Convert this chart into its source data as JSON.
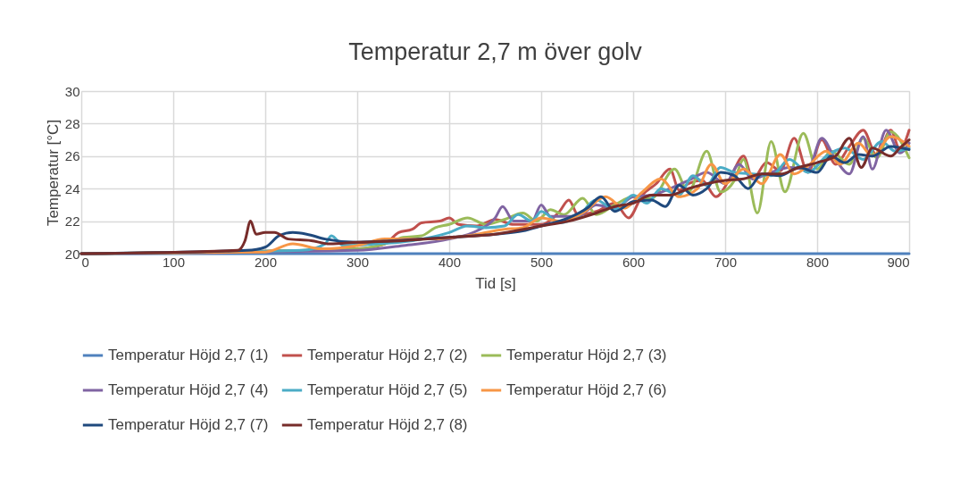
{
  "chart_data": {
    "type": "line",
    "title": "Temperatur 2,7 m över golv",
    "xlabel": "Tid [s]",
    "ylabel": "Temperatur [°C]",
    "xlim": [
      0,
      900
    ],
    "xticks": [
      0,
      100,
      200,
      300,
      400,
      500,
      600,
      700,
      800,
      900
    ],
    "ylim": [
      20,
      30
    ],
    "yticks": [
      20,
      22,
      24,
      26,
      28,
      30
    ],
    "grid": true,
    "legend": "bottom",
    "marker": "none",
    "line_style": "solid",
    "series": [
      {
        "name": "Temperatur Höjd 2,7 (1)",
        "color": "#4f81bd",
        "x": [
          0,
          900
        ],
        "values": [
          20,
          20
        ]
      },
      {
        "name": "Temperatur Höjd 2,7 (2)",
        "color": "#c0504d",
        "x": [
          0,
          300,
          330,
          345,
          360,
          370,
          390,
          400,
          410,
          430,
          450,
          470,
          500,
          520,
          530,
          540,
          560,
          580,
          595,
          610,
          625,
          640,
          650,
          660,
          675,
          690,
          705,
          720,
          730,
          745,
          760,
          775,
          790,
          805,
          820,
          835,
          850,
          865,
          880,
          890,
          900
        ],
        "values": [
          20,
          20.3,
          20.6,
          21.3,
          21.5,
          21.9,
          22.0,
          22.2,
          21.8,
          21.7,
          22.1,
          21.8,
          21.8,
          22.6,
          23.3,
          22.4,
          22.6,
          23.1,
          22.2,
          23.6,
          24.3,
          25.2,
          23.9,
          24.3,
          24.5,
          23.5,
          24.6,
          26.0,
          24.6,
          25.6,
          25.1,
          27.1,
          25.0,
          27.0,
          25.5,
          26.6,
          27.6,
          26.0,
          27.6,
          26.4,
          27.6
        ]
      },
      {
        "name": "Temperatur Höjd 2,7 (3)",
        "color": "#9bbb59",
        "x": [
          0,
          300,
          330,
          350,
          370,
          385,
          400,
          420,
          440,
          460,
          480,
          495,
          510,
          525,
          545,
          560,
          580,
          600,
          620,
          645,
          660,
          680,
          695,
          710,
          720,
          735,
          750,
          765,
          785,
          800,
          815,
          835,
          850,
          865,
          880,
          900
        ],
        "values": [
          20,
          20.3,
          20.6,
          21.0,
          21.1,
          21.6,
          21.8,
          22.2,
          21.8,
          22.1,
          22.5,
          22.0,
          22.7,
          22.4,
          23.4,
          22.4,
          23.0,
          23.5,
          23.4,
          25.2,
          23.8,
          26.3,
          23.8,
          24.5,
          25.8,
          22.5,
          26.9,
          23.8,
          27.4,
          25.2,
          26.3,
          25.5,
          27.1,
          25.9,
          27.5,
          25.9
        ]
      },
      {
        "name": "Temperatur Höjd 2,7 (4)",
        "color": "#8064a2",
        "x": [
          0,
          300,
          350,
          400,
          430,
          450,
          458,
          470,
          490,
          500,
          510,
          540,
          560,
          580,
          600,
          620,
          640,
          660,
          680,
          700,
          715,
          730,
          750,
          770,
          790,
          805,
          820,
          835,
          850,
          860,
          875,
          890,
          900
        ],
        "values": [
          20,
          20.2,
          20.5,
          20.9,
          21.4,
          22.2,
          22.9,
          22.0,
          22.0,
          23.0,
          22.3,
          22.3,
          23.0,
          22.8,
          23.5,
          23.6,
          24.0,
          24.5,
          25.0,
          24.3,
          25.5,
          24.6,
          25.0,
          25.3,
          25.2,
          27.1,
          25.8,
          24.9,
          27.2,
          25.2,
          27.6,
          26.2,
          26.8
        ]
      },
      {
        "name": "Temperatur Höjd 2,7 (5)",
        "color": "#4bacc6",
        "x": [
          0,
          240,
          265,
          272,
          285,
          320,
          360,
          400,
          420,
          440,
          460,
          475,
          490,
          500,
          520,
          540,
          560,
          580,
          600,
          615,
          630,
          650,
          665,
          680,
          695,
          710,
          730,
          750,
          770,
          790,
          810,
          830,
          850,
          870,
          885,
          900
        ],
        "values": [
          20,
          20.2,
          20.6,
          21.1,
          20.5,
          20.6,
          20.8,
          21.3,
          21.7,
          21.6,
          21.7,
          22.4,
          22.0,
          22.6,
          21.9,
          22.3,
          23.3,
          22.7,
          23.6,
          23.1,
          24.0,
          23.6,
          24.8,
          24.2,
          25.3,
          25.0,
          24.9,
          24.8,
          25.8,
          25.0,
          26.0,
          26.5,
          25.8,
          26.9,
          26.3,
          26.5
        ]
      },
      {
        "name": "Temperatur Höjd 2,7 (6)",
        "color": "#f79646",
        "x": [
          0,
          200,
          230,
          260,
          300,
          330,
          380,
          420,
          460,
          480,
          500,
          520,
          545,
          570,
          590,
          610,
          630,
          650,
          670,
          685,
          700,
          720,
          740,
          760,
          775,
          790,
          810,
          825,
          845,
          860,
          880,
          900
        ],
        "values": [
          20,
          20.1,
          20.6,
          20.3,
          20.5,
          20.9,
          20.9,
          21.1,
          21.5,
          21.6,
          22.2,
          22.0,
          22.5,
          23.5,
          22.8,
          23.8,
          24.6,
          23.5,
          24.0,
          25.5,
          24.3,
          25.2,
          24.3,
          26.1,
          24.9,
          25.4,
          26.3,
          25.5,
          26.8,
          26.0,
          27.2,
          26.6
        ]
      },
      {
        "name": "Temperatur Höjd 2,7 (7)",
        "color": "#1f497d",
        "x": [
          0,
          180,
          200,
          215,
          230,
          245,
          265,
          300,
          340,
          400,
          450,
          480,
          500,
          530,
          550,
          565,
          580,
          600,
          620,
          635,
          650,
          665,
          680,
          695,
          710,
          725,
          740,
          760,
          780,
          800,
          815,
          830,
          845,
          860,
          880,
          900
        ],
        "values": [
          20,
          20.2,
          20.4,
          21.1,
          21.3,
          21.2,
          20.9,
          20.7,
          20.8,
          21.0,
          21.2,
          21.4,
          21.7,
          22.2,
          22.8,
          23.5,
          22.6,
          23.2,
          23.3,
          22.9,
          24.2,
          23.6,
          24.0,
          25.0,
          24.8,
          24.0,
          24.9,
          24.8,
          25.3,
          25.0,
          26.0,
          25.6,
          26.1,
          26.0,
          26.6,
          26.4
        ]
      },
      {
        "name": "Temperatur Höjd 2,7 (8)",
        "color": "#772c2a",
        "x": [
          0,
          170,
          178,
          184,
          190,
          200,
          210,
          225,
          250,
          270,
          300,
          350,
          400,
          450,
          500,
          530,
          560,
          580,
          600,
          620,
          640,
          660,
          680,
          700,
          720,
          740,
          760,
          780,
          800,
          820,
          835,
          848,
          860,
          880,
          890,
          900
        ],
        "values": [
          20,
          20.2,
          20.8,
          22.0,
          21.2,
          21.3,
          21.3,
          20.9,
          20.8,
          20.6,
          20.7,
          20.8,
          21.0,
          21.2,
          21.7,
          22.0,
          22.5,
          22.9,
          23.1,
          23.6,
          23.6,
          24.0,
          24.3,
          24.5,
          24.6,
          24.9,
          24.9,
          25.3,
          25.6,
          26.0,
          27.1,
          25.3,
          26.5,
          26.0,
          26.5,
          27.0
        ]
      }
    ]
  }
}
